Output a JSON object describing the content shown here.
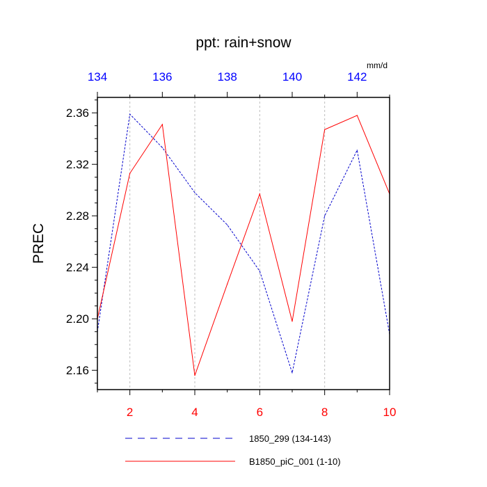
{
  "chart_data": {
    "type": "line",
    "title": "ppt: rain+snow",
    "ylabel": "PREC",
    "units": "mm/d",
    "ylim": [
      2.145,
      2.372
    ],
    "yticks": [
      2.16,
      2.2,
      2.24,
      2.28,
      2.32,
      2.36
    ],
    "ytick_labels": [
      "2.16",
      "2.20",
      "2.24",
      "2.28",
      "2.32",
      "2.36"
    ],
    "bottom_axis": {
      "range": [
        1,
        10
      ],
      "ticks": [
        2,
        4,
        6,
        8,
        10
      ],
      "tick_labels": [
        "2",
        "4",
        "6",
        "8",
        "10"
      ],
      "color": "#ff0000"
    },
    "top_axis": {
      "range": [
        134,
        143
      ],
      "ticks": [
        134,
        136,
        138,
        140,
        142
      ],
      "tick_labels": [
        "134",
        "136",
        "138",
        "140",
        "142"
      ],
      "color": "#0000ff"
    },
    "grid": "vertical dotted at bottom-axis ticks",
    "legend_position": "bottom",
    "series": [
      {
        "name": "1850_299 (134-143)",
        "axis": "top",
        "style": "dashed",
        "color": "#0000cc",
        "x": [
          134,
          135,
          136,
          137,
          138,
          139,
          140,
          141,
          142,
          143
        ],
        "values": [
          2.19,
          2.359,
          2.333,
          2.298,
          2.273,
          2.237,
          2.158,
          2.28,
          2.331,
          2.188
        ]
      },
      {
        "name": "B1850_piC_001 (1-10)",
        "axis": "bottom",
        "style": "solid",
        "color": "#ff0000",
        "x": [
          1,
          2,
          3,
          4,
          5,
          6,
          7,
          8,
          9,
          10
        ],
        "values": [
          2.2,
          2.313,
          2.351,
          2.156,
          2.227,
          2.297,
          2.198,
          2.347,
          2.358,
          2.297
        ]
      }
    ]
  }
}
